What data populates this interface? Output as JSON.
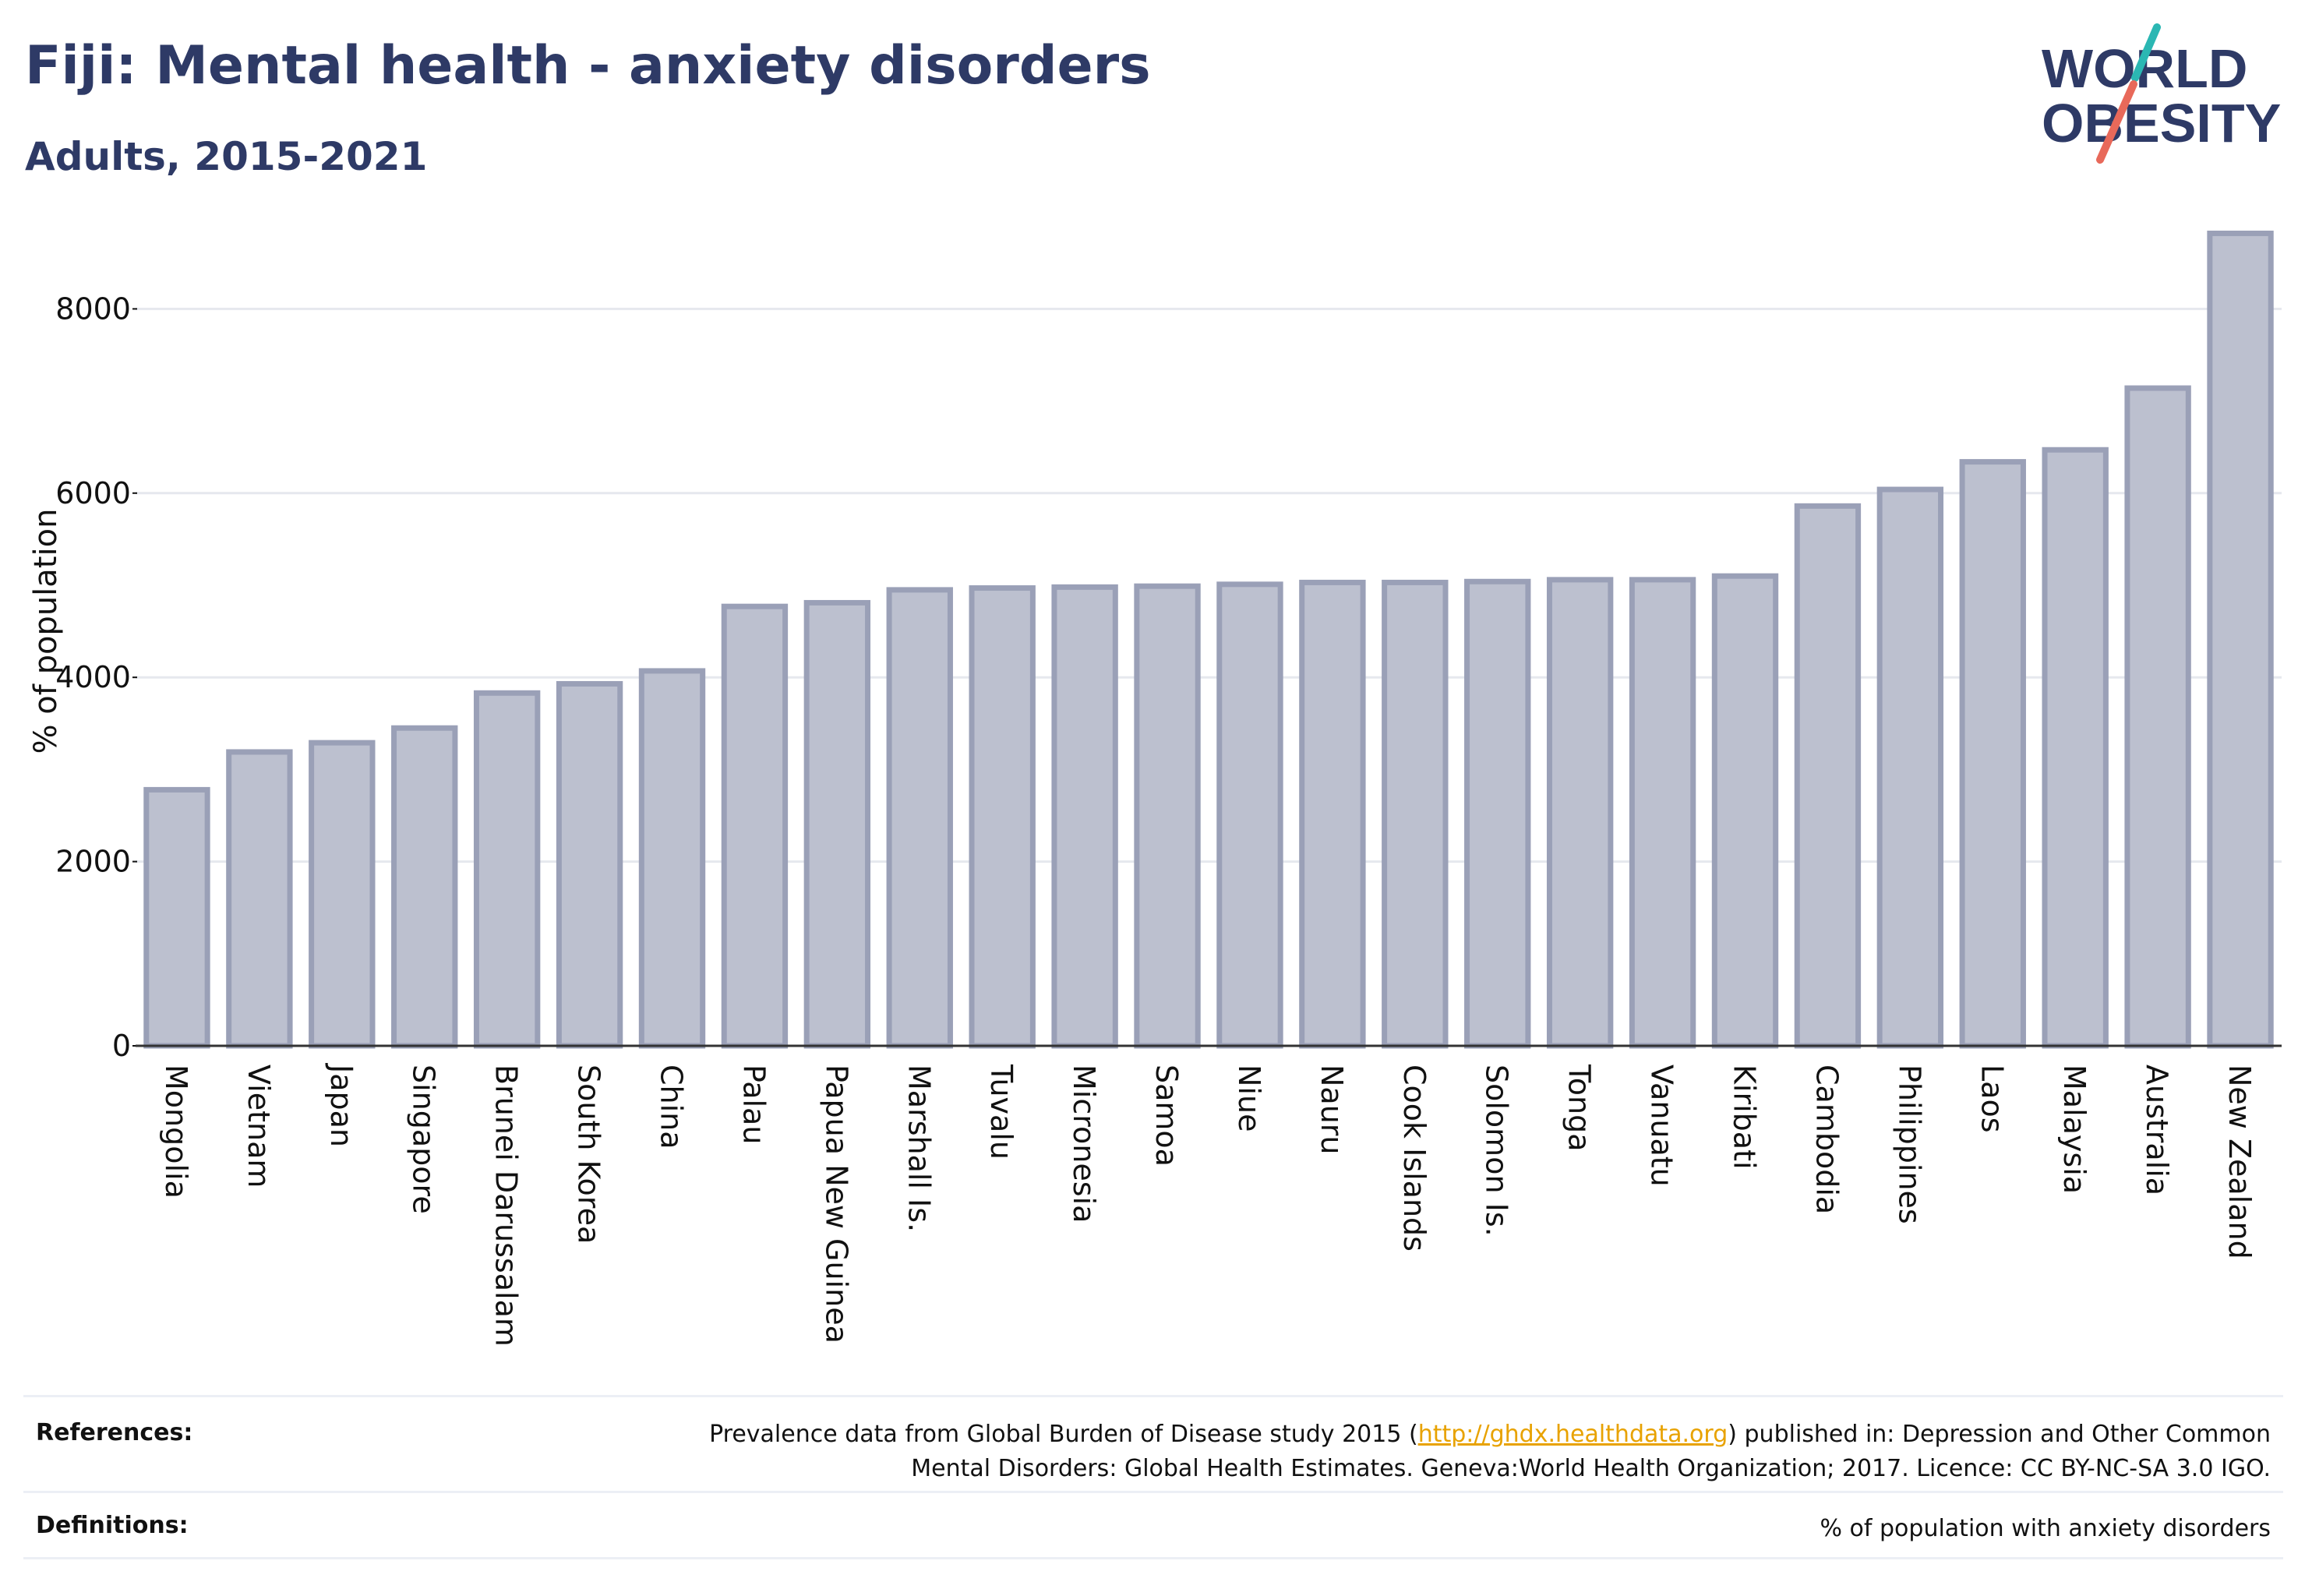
{
  "title": "Fiji: Mental health - anxiety disorders",
  "subtitle": "Adults, 2015-2021",
  "logo": {
    "line1": "WORLD",
    "line2": "OBESITY"
  },
  "colors": {
    "title": "#2e3a66",
    "bar_fill": "#bcc0cf",
    "bar_stroke": "#9aa0b7",
    "gridline": "#e6e8ee",
    "link": "#e8a200",
    "logo_teal": "#2bb7b3",
    "logo_coral": "#e8695a"
  },
  "chart_data": {
    "type": "bar",
    "ylabel": "% of population",
    "xlabel": "",
    "ylim": [
      0,
      8900
    ],
    "yticks": [
      0,
      2000,
      4000,
      6000,
      8000
    ],
    "grid": true,
    "categories": [
      "Mongolia",
      "Vietnam",
      "Japan",
      "Singapore",
      "Brunei Darussalam",
      "South Korea",
      "China",
      "Palau",
      "Papua New Guinea",
      "Marshall Is.",
      "Tuvalu",
      "Micronesia",
      "Samoa",
      "Niue",
      "Nauru",
      "Cook Islands",
      "Solomon Is.",
      "Tonga",
      "Vanuatu",
      "Kiribati",
      "Cambodia",
      "Philippines",
      "Laos",
      "Malaysia",
      "Australia",
      "New Zealand"
    ],
    "values": [
      2780,
      3190,
      3290,
      3450,
      3830,
      3930,
      4070,
      4770,
      4810,
      4950,
      4970,
      4980,
      4990,
      5010,
      5030,
      5030,
      5040,
      5060,
      5060,
      5100,
      5860,
      6040,
      6340,
      6470,
      7140,
      8820
    ]
  },
  "footer": {
    "references_label": "References:",
    "references_pre": "Prevalence data from Global Burden of Disease study 2015 (",
    "references_link": "http://ghdx.healthdata.org",
    "references_mid": ") published in: Depression and Other Common",
    "references_line2": "Mental Disorders: Global Health Estimates. Geneva:World Health Organization; 2017. Licence: CC BY-NC-SA 3.0 IGO.",
    "definitions_label": "Definitions:",
    "definitions_text": "% of population with anxiety disorders"
  }
}
